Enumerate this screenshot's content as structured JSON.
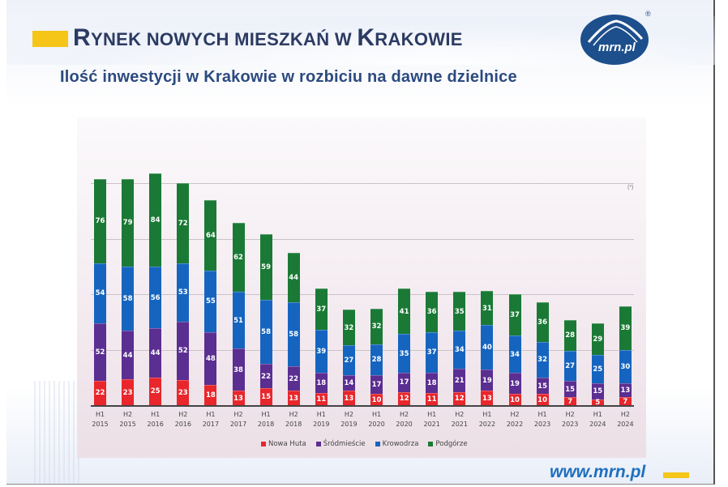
{
  "header": {
    "title_parts": [
      {
        "text": "R",
        "size": "big"
      },
      {
        "text": "YNEK NOWYCH MIESZKAŃ W ",
        "size": "small"
      },
      {
        "text": "K",
        "size": "big"
      },
      {
        "text": "RAKOWIE",
        "size": "small"
      }
    ],
    "title": "RYNEK NOWYCH MIESZKAŃ W KRAKOWIE",
    "subtitle": "Ilość inwestycji w Krakowie w rozbiciu na dawne dzielnice",
    "logo_text": "mrn.pl",
    "registered_mark": "®"
  },
  "footer": {
    "url": "www.mrn.pl"
  },
  "colors": {
    "accent_yellow": "#f5c518",
    "brand_blue": "#1d4f8c",
    "title_navy": "#2c3b63",
    "nowa_huta": "#e8262b",
    "srodmiescie": "#5b2e91",
    "krowodrza": "#1565c0",
    "podgorze": "#1a7a35"
  },
  "chart_data": {
    "type": "bar",
    "stacked": true,
    "title": "Ilość inwestycji w Krakowie w rozbiciu na dawne dzielnice",
    "xlabel": "",
    "ylabel": "",
    "ylim": [
      0,
      210
    ],
    "grid": true,
    "legend_position": "bottom",
    "categories": [
      "H1 2015",
      "H2 2015",
      "H1 2016",
      "H2 2016",
      "H1 2017",
      "H2 2017",
      "H1 2018",
      "H2 2018",
      "H1 2019",
      "H2 2019",
      "H1 2020",
      "H2 2020",
      "H1 2021",
      "H2 2021",
      "H1 2022",
      "H2 2022",
      "H1 2023",
      "H2 2023",
      "H1 2024",
      "H2 2024"
    ],
    "category_lines": [
      [
        "H1",
        "2015"
      ],
      [
        "H2",
        "2015"
      ],
      [
        "H1",
        "2016"
      ],
      [
        "H2",
        "2016"
      ],
      [
        "H1",
        "2017"
      ],
      [
        "H2",
        "2017"
      ],
      [
        "H1",
        "2018"
      ],
      [
        "H2",
        "2018"
      ],
      [
        "H1",
        "2019"
      ],
      [
        "H2",
        "2019"
      ],
      [
        "H1",
        "2020"
      ],
      [
        "H2",
        "2020"
      ],
      [
        "H1",
        "2021"
      ],
      [
        "H2",
        "2021"
      ],
      [
        "H1",
        "2022"
      ],
      [
        "H2",
        "2022"
      ],
      [
        "H1",
        "2023"
      ],
      [
        "H2",
        "2023"
      ],
      [
        "H1",
        "2024"
      ],
      [
        "H2",
        "2024"
      ]
    ],
    "series": [
      {
        "name": "Nowa Huta",
        "color": "#e8262b",
        "values": [
          22,
          23,
          25,
          23,
          18,
          13,
          15,
          13,
          11,
          13,
          10,
          12,
          11,
          12,
          13,
          10,
          10,
          7,
          5,
          7
        ]
      },
      {
        "name": "Śródmieście",
        "color": "#5b2e91",
        "values": [
          52,
          44,
          44,
          52,
          48,
          38,
          22,
          22,
          18,
          14,
          17,
          17,
          18,
          21,
          19,
          19,
          15,
          15,
          15,
          13
        ]
      },
      {
        "name": "Krowodrza",
        "color": "#1565c0",
        "values": [
          54,
          58,
          56,
          53,
          55,
          51,
          58,
          58,
          39,
          27,
          28,
          35,
          37,
          34,
          40,
          34,
          32,
          27,
          25,
          30
        ]
      },
      {
        "name": "Podgórze",
        "color": "#1a7a35",
        "values": [
          76,
          79,
          84,
          72,
          64,
          62,
          59,
          44,
          37,
          32,
          32,
          41,
          36,
          35,
          31,
          37,
          36,
          28,
          29,
          39
        ]
      }
    ],
    "gridlines_at": [
      50,
      100,
      150,
      200
    ],
    "annotations": [
      "(*)"
    ]
  }
}
